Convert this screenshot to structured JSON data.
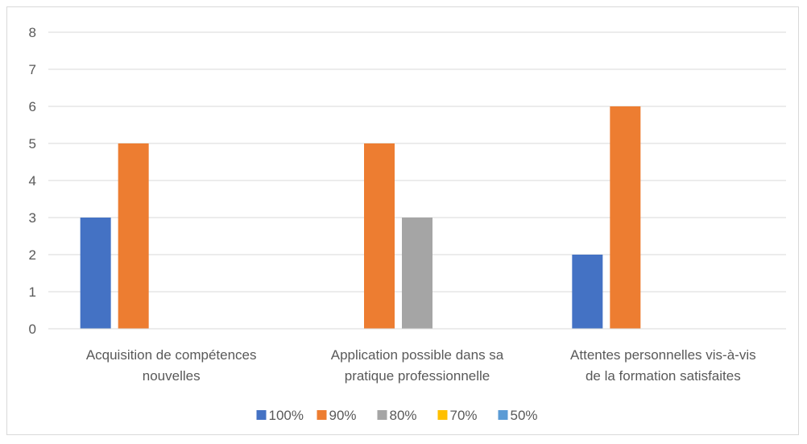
{
  "chart_data": {
    "type": "bar",
    "title": "",
    "xlabel": "",
    "ylabel": "",
    "ylim": [
      0,
      8
    ],
    "y_ticks": [
      0,
      1,
      2,
      3,
      4,
      5,
      6,
      7,
      8
    ],
    "grid": true,
    "legend_position": "bottom",
    "categories": [
      [
        "Acquisition de compétences",
        "nouvelles"
      ],
      [
        "Application possible dans sa",
        "pratique professionnelle"
      ],
      [
        "Attentes personnelles vis-à-vis",
        "de la formation satisfaites"
      ]
    ],
    "series": [
      {
        "name": "100%",
        "color": "#4472C4",
        "values": [
          3,
          0,
          2
        ]
      },
      {
        "name": "90%",
        "color": "#ED7D31",
        "values": [
          5,
          5,
          6
        ]
      },
      {
        "name": "80%",
        "color": "#A5A5A5",
        "values": [
          0,
          3,
          0
        ]
      },
      {
        "name": "70%",
        "color": "#FFC000",
        "values": [
          0,
          0,
          0
        ]
      },
      {
        "name": "50%",
        "color": "#5B9BD5",
        "values": [
          0,
          0,
          0
        ]
      }
    ]
  }
}
